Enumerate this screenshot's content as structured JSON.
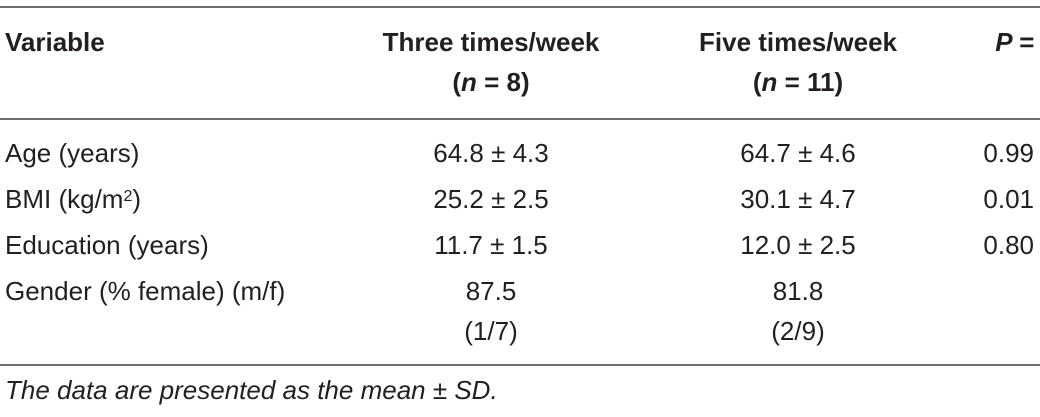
{
  "header": {
    "variable": "Variable",
    "group1_line1": "Three times/week",
    "group1_n_italic": "n",
    "group1_n_rest": " = 8)",
    "group2_line1": "Five times/week",
    "group2_n_italic": "n",
    "group2_n_rest": " = 11)",
    "p_label": "P =",
    "open_paren": "("
  },
  "rows": [
    {
      "variable": "Age (years)",
      "g1": "64.8 ± 4.3",
      "g2": "64.7 ± 4.6",
      "p": "0.99"
    },
    {
      "variable_pre": "BMI (kg/m",
      "variable_sup": "2",
      "variable_post": ")",
      "g1": "25.2 ± 2.5",
      "g2": "30.1 ± 4.7",
      "p": "0.01"
    },
    {
      "variable": "Education (years)",
      "g1": "11.7 ± 1.5",
      "g2": "12.0 ± 2.5",
      "p": "0.80"
    },
    {
      "variable": "Gender (% female) (m/f)",
      "g1_line1": "87.5",
      "g1_line2": "(1/7)",
      "g2_line1": "81.8",
      "g2_line2": "(2/9)",
      "p": ""
    }
  ],
  "footnote": "The data are presented as the mean ± SD."
}
